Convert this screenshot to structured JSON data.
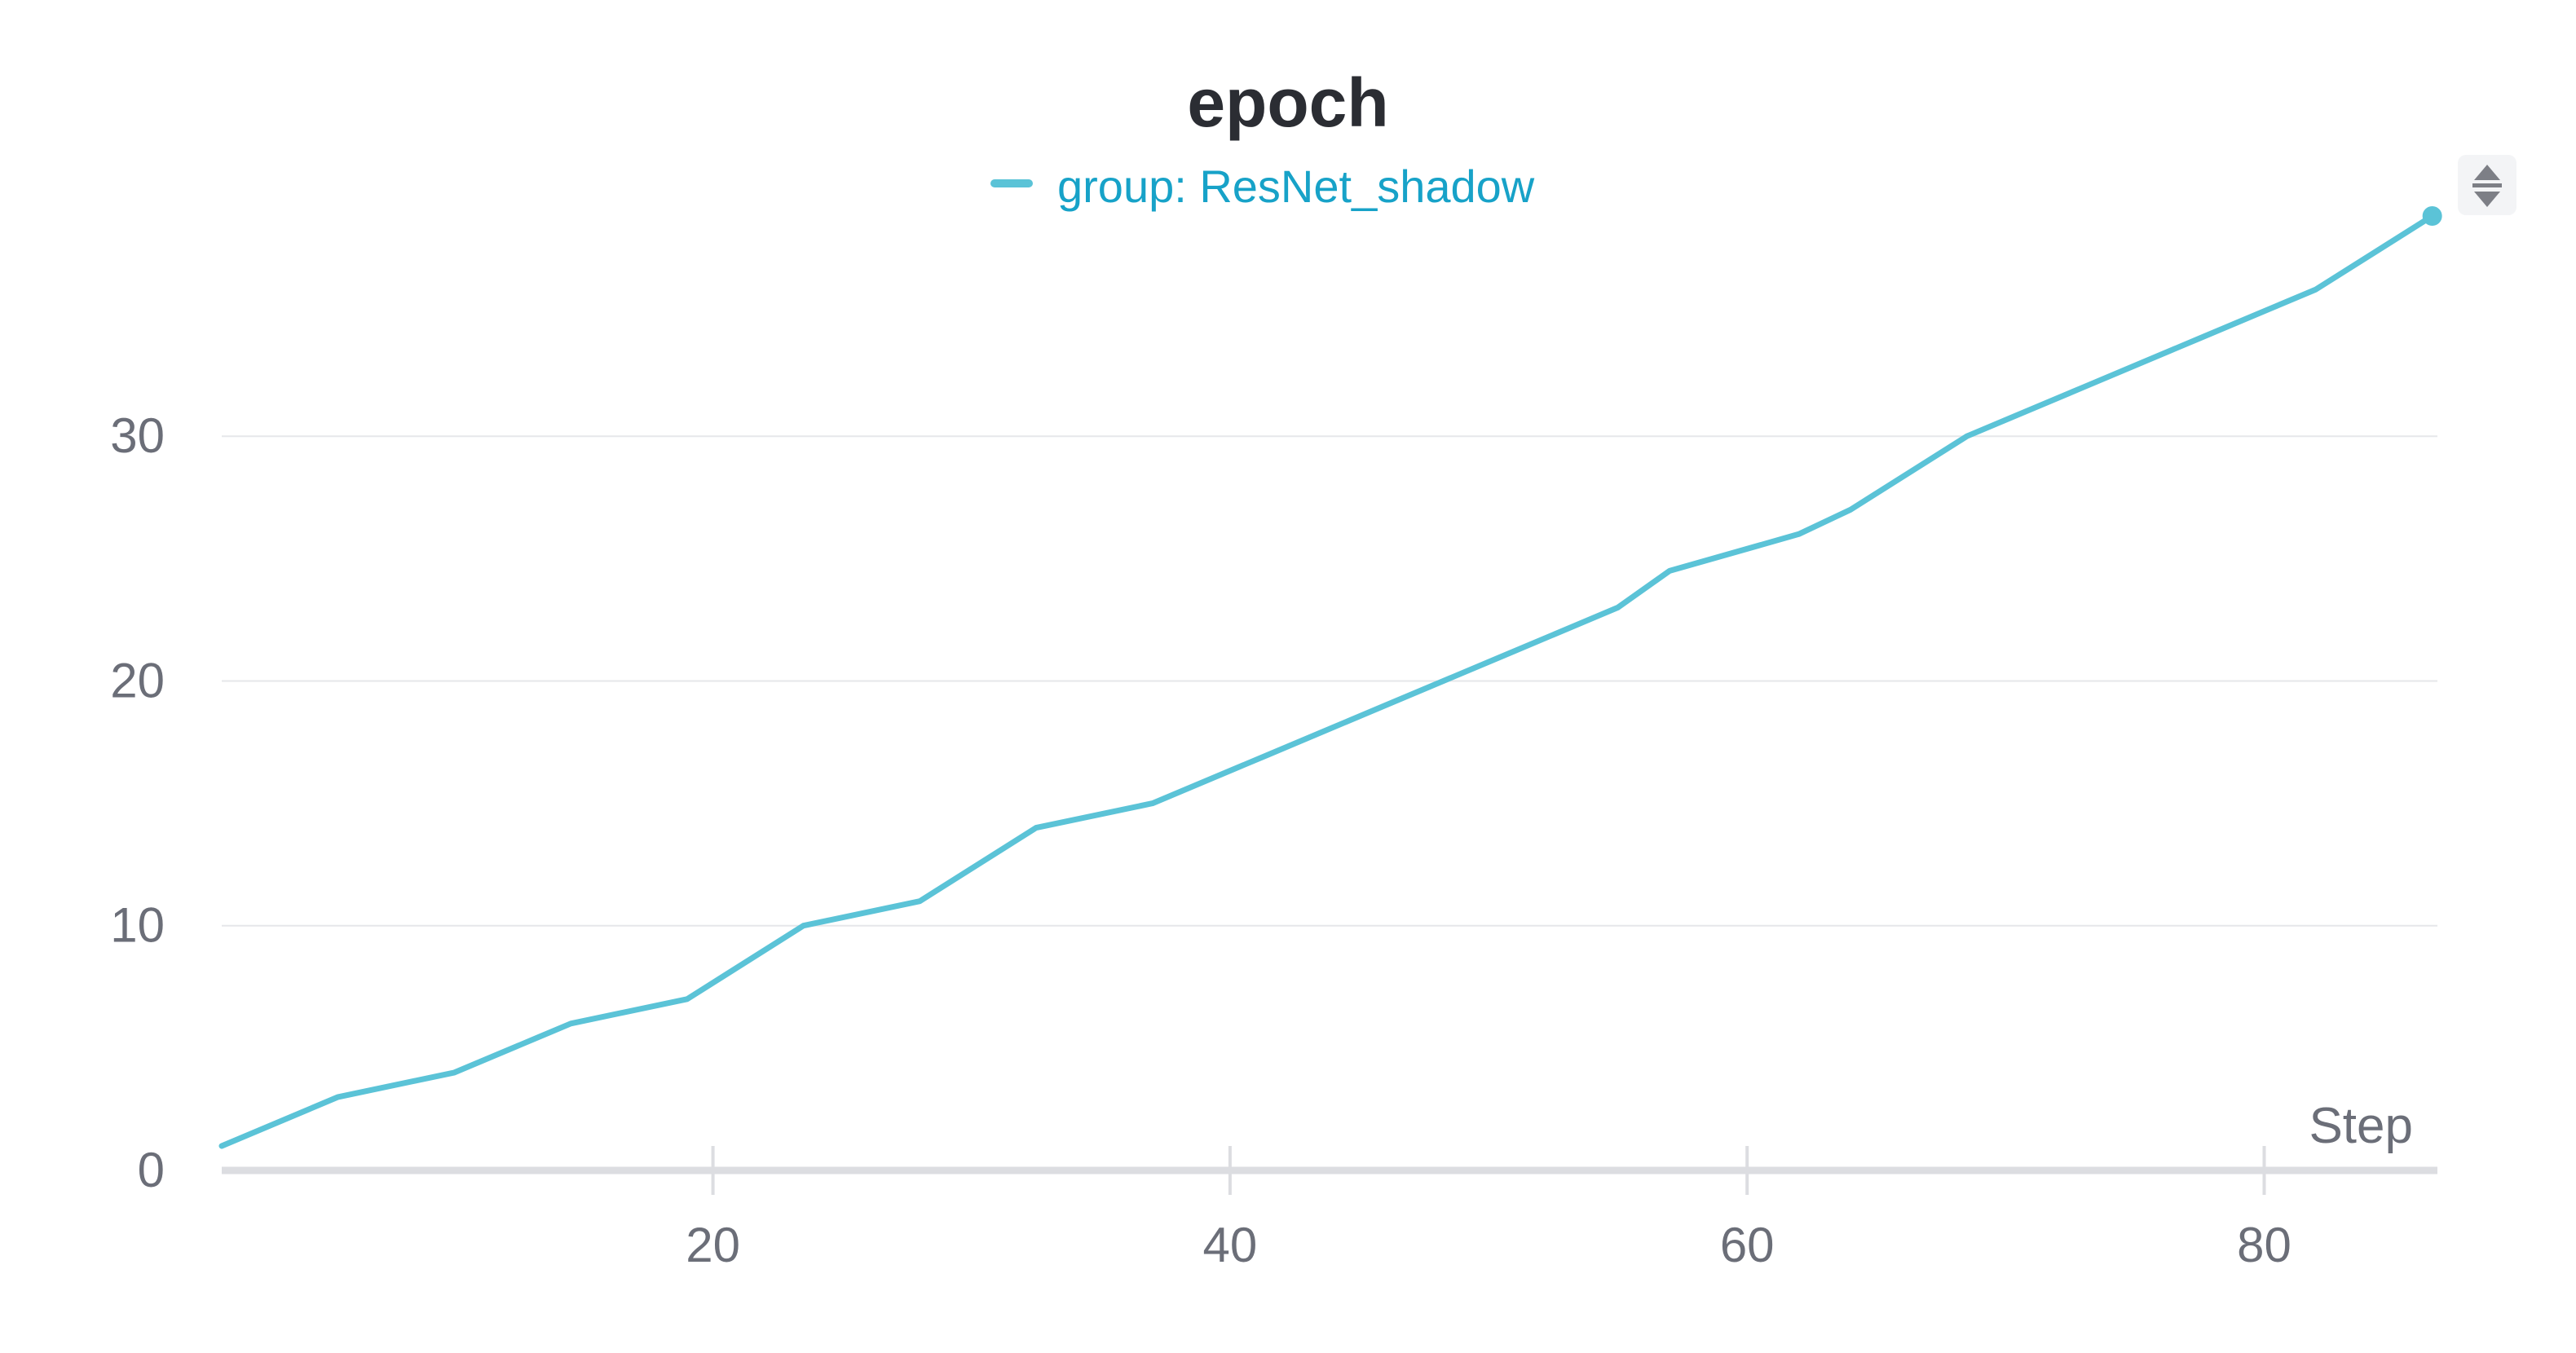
{
  "chart_data": {
    "type": "line",
    "title": "epoch",
    "xlabel": "Step",
    "ylabel": "",
    "xlim": [
      1,
      86.7
    ],
    "ylim": [
      0,
      39
    ],
    "x_ticks": [
      20,
      40,
      60,
      80
    ],
    "y_ticks": [
      0,
      10,
      20,
      30
    ],
    "grid": "horizontal",
    "legend_position": "top-center",
    "series": [
      {
        "name": "group: ResNet_shadow",
        "color": "#5bc3d7",
        "x": [
          1,
          5.5,
          10,
          14.5,
          19,
          23.5,
          28,
          32.5,
          37,
          41.5,
          46,
          50.5,
          55,
          57,
          62,
          64,
          68.5,
          73,
          77.5,
          82,
          86.5
        ],
        "y": [
          1,
          3,
          4,
          6,
          7,
          10,
          11,
          14,
          15,
          17,
          19,
          21,
          23,
          24.5,
          26,
          27,
          30,
          32,
          34,
          36,
          39
        ]
      }
    ]
  },
  "icons": {
    "sort_handle": "sort-arrows-icon"
  }
}
